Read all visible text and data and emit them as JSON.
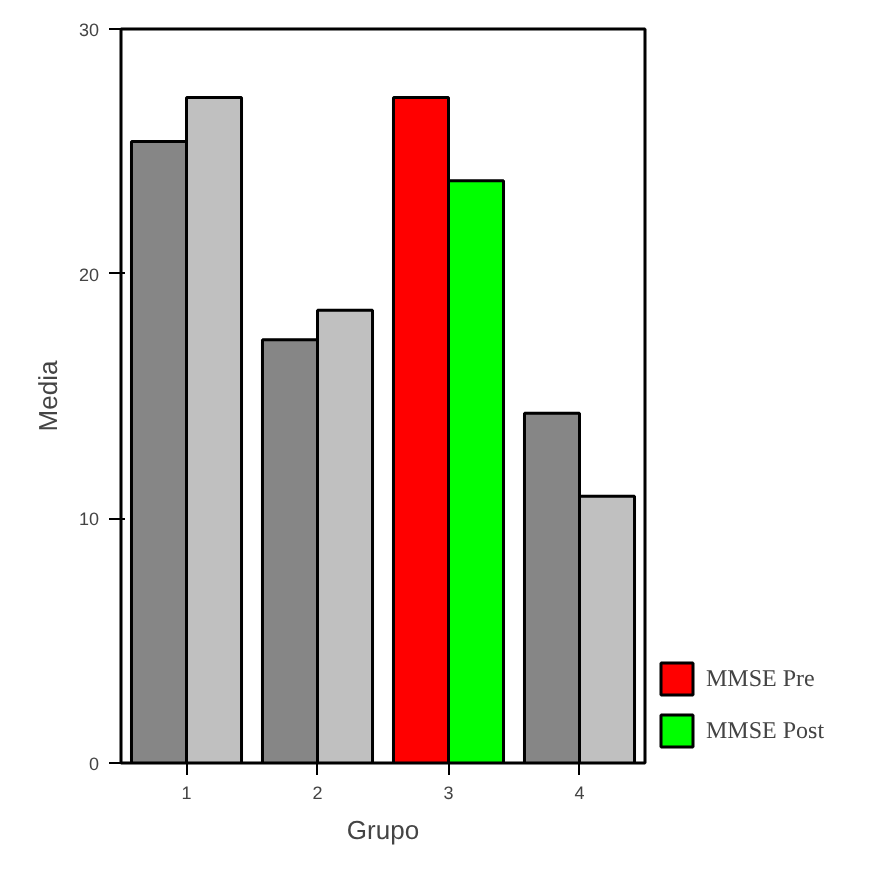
{
  "chart_data": {
    "type": "bar",
    "xlabel": "Grupo",
    "ylabel": "Media",
    "categories": [
      "1",
      "2",
      "3",
      "4"
    ],
    "series": [
      {
        "name": "MMSE Pre",
        "color": "#ff0000",
        "colors": [
          "#868686",
          "#868686",
          "#ff0000",
          "#868686"
        ],
        "values": [
          25.4,
          17.3,
          27.2,
          14.3
        ]
      },
      {
        "name": "MMSE Post",
        "color": "#00ff00",
        "colors": [
          "#c0c0c0",
          "#c0c0c0",
          "#00ff00",
          "#c0c0c0"
        ],
        "values": [
          27.2,
          18.5,
          23.8,
          10.9
        ]
      }
    ],
    "ylim": [
      0,
      30
    ],
    "yticks": [
      0,
      10,
      20,
      30
    ],
    "grid": false,
    "legend": "right"
  }
}
